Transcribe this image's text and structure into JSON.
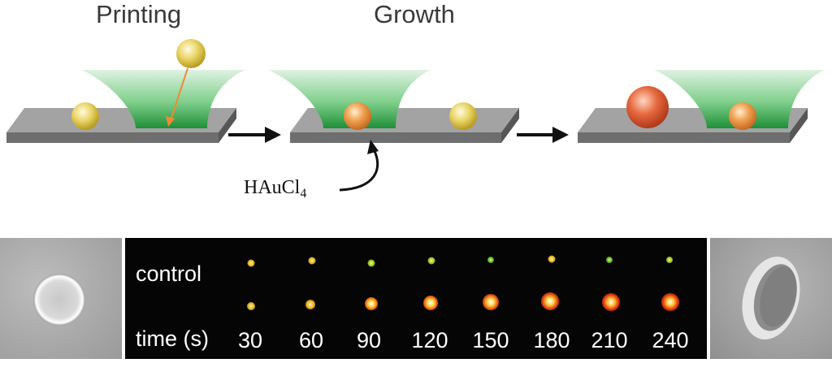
{
  "stages": {
    "printing_label": "Printing",
    "growth_label": "Growth"
  },
  "reagent": {
    "base": "HAuCl",
    "subscript": "4"
  },
  "microscopy": {
    "row_label_control": "control",
    "row_label_time": "time (s)",
    "time_points": [
      "30",
      "60",
      "90",
      "120",
      "150",
      "180",
      "210",
      "240"
    ]
  },
  "colors": {
    "substrate_top": "#9e9e9e",
    "ink": "#2e9e44",
    "seed_particle": "#e6d24a",
    "grown_particle": "#e0653a",
    "dark_panel": "#050505"
  }
}
